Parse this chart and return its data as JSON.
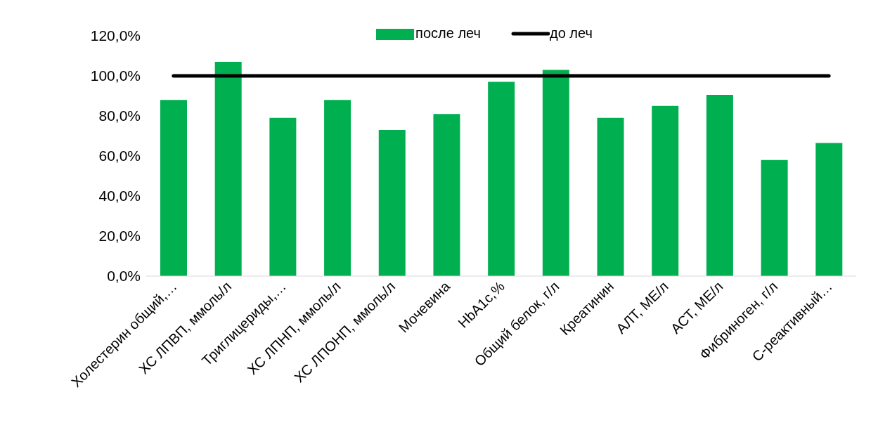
{
  "chart_data": {
    "type": "bar",
    "categories": [
      "Холестерин общий,…",
      "ХС ЛПВП, ммоль/л",
      "Триглицериды,…",
      "ХС ЛПНП, ммоль/л",
      "ХС ЛПОНП, ммоль/л",
      "Мочевина",
      "HbA1c,%",
      "Общий белок, г/л",
      "Креатинин",
      "АЛТ, МЕ/л",
      "АСТ, МЕ/л",
      "Фибриноген, г/л",
      "С-реактивный…"
    ],
    "series": [
      {
        "name": "после леч",
        "color": "#00b050",
        "values": [
          88,
          107,
          79,
          88,
          73,
          81,
          97,
          103,
          79,
          85,
          90.5,
          58,
          66.5
        ]
      },
      {
        "name": "до леч",
        "type": "line",
        "color": "#000000",
        "values": [
          100,
          100,
          100,
          100,
          100,
          100,
          100,
          100,
          100,
          100,
          100,
          100,
          100
        ]
      }
    ],
    "ylim": [
      0,
      120
    ],
    "yticks": [
      {
        "value": 0,
        "label": "0,0%"
      },
      {
        "value": 20,
        "label": "20,0%"
      },
      {
        "value": 40,
        "label": "40,0%"
      },
      {
        "value": 60,
        "label": "60,0%"
      },
      {
        "value": 80,
        "label": "80,0%"
      },
      {
        "value": 100,
        "label": "100,0%"
      },
      {
        "value": 120,
        "label": "120,0%"
      }
    ],
    "grid": false,
    "legend": "top",
    "marker": "none",
    "line_style": "solid"
  }
}
